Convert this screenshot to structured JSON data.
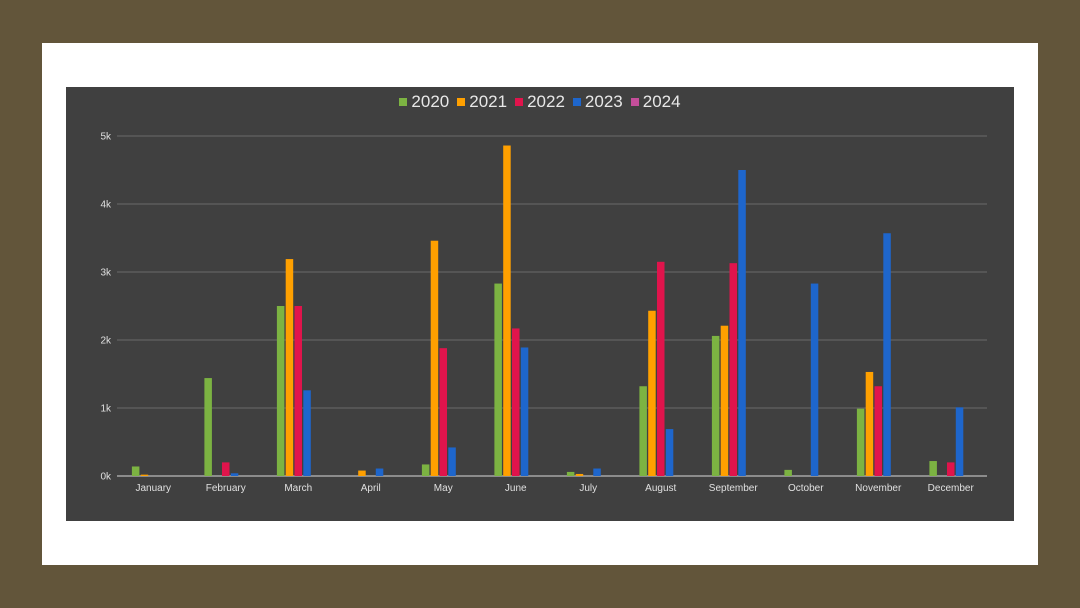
{
  "chart_data": {
    "type": "bar",
    "title": "",
    "xlabel": "",
    "ylabel": "",
    "categories": [
      "January",
      "February",
      "March",
      "April",
      "May",
      "June",
      "July",
      "August",
      "September",
      "October",
      "November",
      "December"
    ],
    "ylim": [
      0,
      5000
    ],
    "yticks": [
      0,
      1000,
      2000,
      3000,
      4000,
      5000
    ],
    "ytick_labels": [
      "0k",
      "1k",
      "2k",
      "3k",
      "4k",
      "5k"
    ],
    "grid": true,
    "legend_position": "top",
    "series": [
      {
        "name": "2020",
        "color": "#7cb342",
        "values": [
          140,
          1440,
          2500,
          0,
          170,
          2830,
          60,
          1320,
          2060,
          90,
          990,
          220
        ]
      },
      {
        "name": "2021",
        "color": "#ffa000",
        "values": [
          20,
          0,
          3190,
          80,
          3460,
          4860,
          30,
          2430,
          2210,
          0,
          1530,
          0
        ]
      },
      {
        "name": "2022",
        "color": "#e0144c",
        "values": [
          0,
          200,
          2500,
          0,
          1880,
          2170,
          0,
          3150,
          3130,
          0,
          1320,
          200
        ]
      },
      {
        "name": "2023",
        "color": "#1e66cc",
        "values": [
          0,
          40,
          1260,
          110,
          420,
          1890,
          110,
          690,
          4500,
          2830,
          3570,
          1010
        ]
      },
      {
        "name": "2024",
        "color": "#c44e9a",
        "values": [
          0,
          0,
          0,
          0,
          0,
          0,
          0,
          0,
          0,
          0,
          0,
          0
        ]
      }
    ]
  }
}
